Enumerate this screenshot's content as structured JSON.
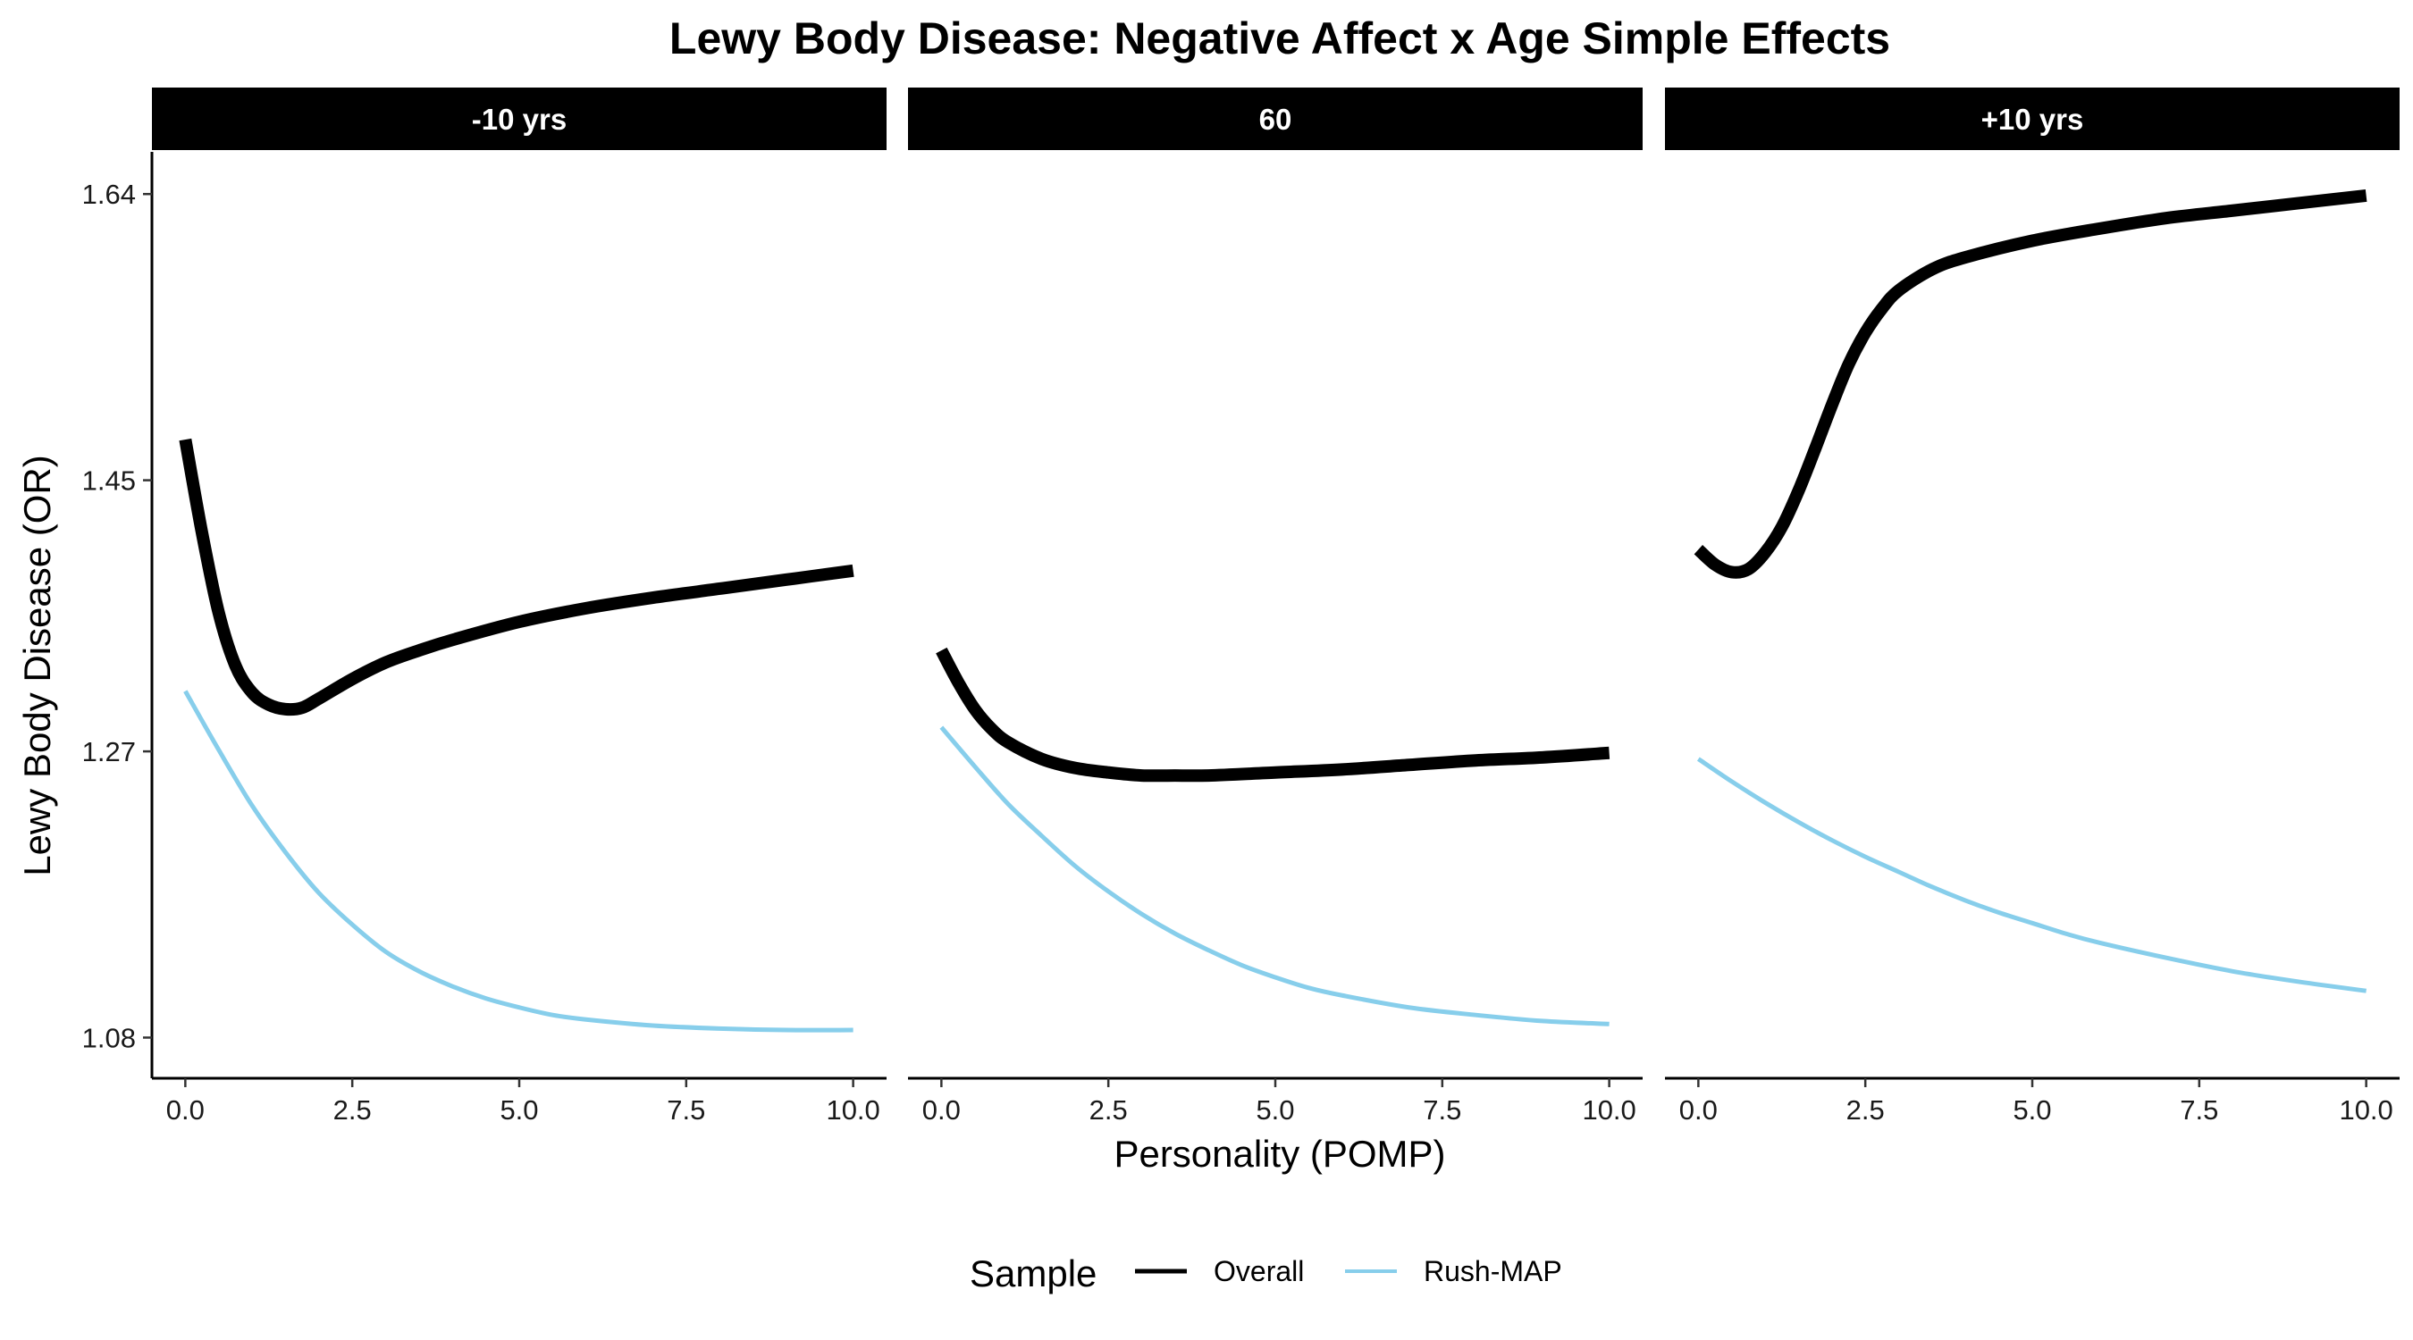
{
  "chart_data": {
    "type": "line",
    "title": "Lewy Body Disease: Negative Affect x Age Simple Effects",
    "xlabel": "Personality (POMP)",
    "ylabel": "Lewy Body Disease (OR)",
    "xlim": [
      -0.5,
      10.5
    ],
    "ylim": [
      1.053,
      1.668
    ],
    "x_ticks": [
      0,
      2.5,
      5,
      7.5,
      10
    ],
    "x_tick_labels": [
      "0.0",
      "2.5",
      "5.0",
      "7.5",
      "10.0"
    ],
    "y_ticks": [
      1.08,
      1.27,
      1.45,
      1.64
    ],
    "y_tick_labels": [
      "1.08",
      "1.27",
      "1.45",
      "1.64"
    ],
    "grid": false,
    "legend": {
      "title": "Sample",
      "position": "bottom",
      "entries": [
        {
          "label": "Overall",
          "color": "#000000"
        },
        {
          "label": "Rush-MAP",
          "color": "#87CEEB"
        }
      ]
    },
    "facets": [
      {
        "label": "-10 yrs",
        "series": [
          {
            "name": "Overall",
            "color": "#000000",
            "x": [
              0,
              0.25,
              0.5,
              0.75,
              1,
              1.25,
              1.5,
              1.75,
              2,
              2.5,
              3,
              3.5,
              4,
              5,
              6,
              7,
              8,
              9,
              10
            ],
            "y": [
              1.477,
              1.415,
              1.362,
              1.327,
              1.309,
              1.301,
              1.298,
              1.299,
              1.305,
              1.318,
              1.329,
              1.337,
              1.344,
              1.356,
              1.365,
              1.372,
              1.378,
              1.384,
              1.39
            ]
          },
          {
            "name": "Rush-MAP",
            "color": "#87CEEB",
            "x": [
              0,
              0.5,
              1,
              1.5,
              2,
              2.5,
              3,
              3.5,
              4,
              4.5,
              5,
              5.5,
              6,
              7,
              8,
              9,
              10
            ],
            "y": [
              1.31,
              1.271,
              1.234,
              1.203,
              1.176,
              1.155,
              1.137,
              1.124,
              1.114,
              1.106,
              1.1,
              1.095,
              1.092,
              1.088,
              1.086,
              1.085,
              1.085
            ]
          }
        ]
      },
      {
        "label": "60",
        "series": [
          {
            "name": "Overall",
            "color": "#000000",
            "x": [
              0,
              0.25,
              0.5,
              0.75,
              1,
              1.5,
              2,
              2.5,
              3,
              3.5,
              4,
              5,
              6,
              7,
              8,
              9,
              10
            ],
            "y": [
              1.337,
              1.316,
              1.298,
              1.285,
              1.276,
              1.265,
              1.259,
              1.256,
              1.254,
              1.254,
              1.254,
              1.256,
              1.258,
              1.261,
              1.264,
              1.266,
              1.269
            ]
          },
          {
            "name": "Rush-MAP",
            "color": "#87CEEB",
            "x": [
              0,
              0.5,
              1,
              1.5,
              2,
              2.5,
              3,
              3.5,
              4,
              4.5,
              5,
              5.5,
              6,
              7,
              8,
              9,
              10
            ],
            "y": [
              1.286,
              1.26,
              1.235,
              1.214,
              1.194,
              1.177,
              1.162,
              1.149,
              1.138,
              1.128,
              1.12,
              1.113,
              1.108,
              1.1,
              1.095,
              1.091,
              1.089
            ]
          }
        ]
      },
      {
        "label": "+10 yrs",
        "series": [
          {
            "name": "Overall",
            "color": "#000000",
            "x": [
              0,
              0.25,
              0.5,
              0.75,
              1,
              1.25,
              1.5,
              1.75,
              2,
              2.25,
              2.5,
              2.75,
              3,
              3.5,
              4,
              5,
              6,
              7,
              8,
              9,
              10
            ],
            "y": [
              1.404,
              1.394,
              1.389,
              1.391,
              1.402,
              1.419,
              1.443,
              1.471,
              1.5,
              1.527,
              1.548,
              1.564,
              1.576,
              1.59,
              1.598,
              1.609,
              1.617,
              1.624,
              1.629,
              1.634,
              1.639
            ]
          },
          {
            "name": "Rush-MAP",
            "color": "#87CEEB",
            "x": [
              0,
              0.5,
              1,
              1.5,
              2,
              2.5,
              3,
              3.5,
              4,
              4.5,
              5,
              5.5,
              6,
              7,
              8,
              9,
              10
            ],
            "y": [
              1.265,
              1.25,
              1.236,
              1.223,
              1.211,
              1.2,
              1.19,
              1.18,
              1.171,
              1.163,
              1.156,
              1.149,
              1.143,
              1.133,
              1.124,
              1.117,
              1.111
            ]
          }
        ]
      }
    ]
  }
}
